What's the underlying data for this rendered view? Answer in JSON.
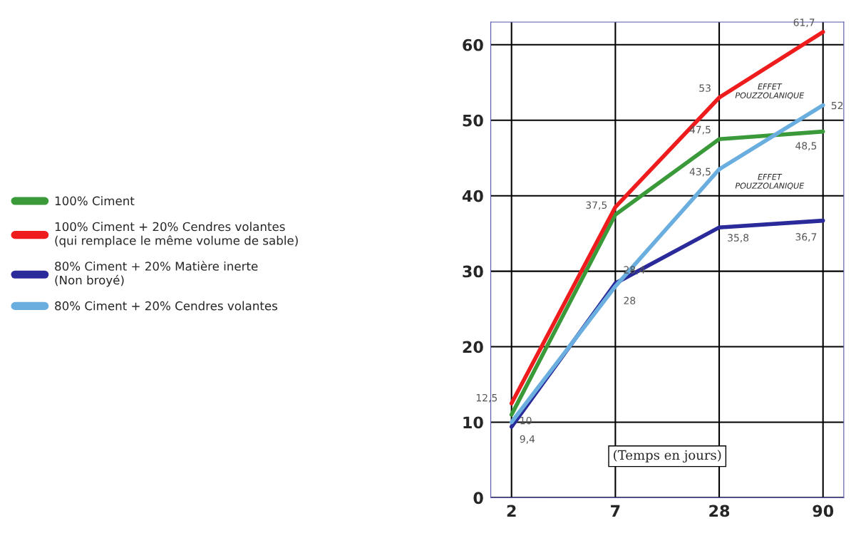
{
  "chart_data": {
    "type": "line",
    "xlabel": "(Temps en jours)",
    "categories": [
      "2",
      "7",
      "28",
      "90"
    ],
    "series": [
      {
        "name": "100% Ciment",
        "color": "#3a9a3a",
        "values": [
          11,
          37.5,
          47.5,
          48.5
        ],
        "value_labels": [
          null,
          "37,5",
          "47,5",
          "48,5"
        ]
      },
      {
        "name": "100% Ciment + 20% Cendres volantes\n(qui remplace le même volume de sable)",
        "color": "#ee1c1c",
        "values": [
          12.5,
          38.5,
          53,
          61.7
        ],
        "value_labels": [
          "12,5",
          null,
          "53",
          "61,7"
        ]
      },
      {
        "name": "80% Ciment + 20% Matière inerte\n(Non broyé)",
        "color": "#2a2a9a",
        "values": [
          9.4,
          28.4,
          35.8,
          36.7
        ],
        "value_labels": [
          "9,4",
          "28,4",
          "35,8",
          "36,7"
        ]
      },
      {
        "name": "80% Ciment + 20% Cendres volantes",
        "color": "#6aaee0",
        "values": [
          10,
          28,
          43.5,
          52
        ],
        "value_labels": [
          "10",
          "28",
          "43,5",
          "52"
        ]
      }
    ],
    "ylim": [
      0,
      63
    ],
    "yticks": [
      0,
      10,
      20,
      30,
      40,
      50,
      60
    ],
    "grid": true,
    "legend": "left",
    "marker": "none",
    "line_style": "solid",
    "annotations": [
      "EFFET\nPOUZZOLANIQUE",
      "EFFET\nPOUZZOLANIQUE"
    ]
  }
}
